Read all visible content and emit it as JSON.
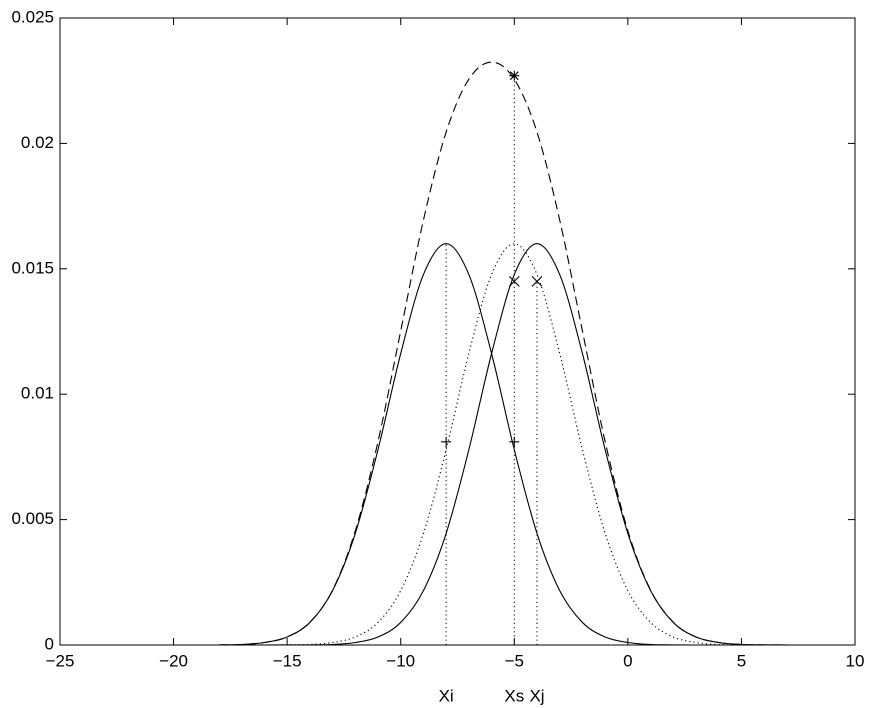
{
  "chart_data": {
    "type": "line",
    "x": [
      -18,
      -17,
      -16,
      -15,
      -14,
      -13,
      -12,
      -11,
      -10,
      -9,
      -8,
      -7,
      -6,
      -5,
      -4,
      -3,
      -2,
      -1,
      0,
      1,
      2,
      3,
      4,
      5,
      6,
      7
    ],
    "series": [
      {
        "color": "#000000",
        "style": "solid",
        "values": [
          5e-06,
          2e-05,
          0.0001,
          0.00032,
          0.0009,
          0.00217,
          0.00445,
          0.00779,
          0.01162,
          0.01477,
          0.016,
          0.01477,
          0.01162,
          0.00779,
          0.00445,
          0.00217,
          0.0009,
          0.00032,
          0.0001,
          2e-05,
          5e-06,
          0,
          0,
          0,
          0,
          0
        ]
      },
      {
        "color": "#000000",
        "style": "solid",
        "values": [
          0,
          0,
          0,
          1e-06,
          5e-06,
          2e-05,
          0.0001,
          0.00032,
          0.0009,
          0.00217,
          0.00445,
          0.00779,
          0.01162,
          0.01477,
          0.016,
          0.01477,
          0.01162,
          0.00779,
          0.00445,
          0.00217,
          0.0009,
          0.00032,
          0.0001,
          2e-05,
          5e-06,
          1e-06
        ]
      },
      {
        "color": "#000000",
        "style": "dotted",
        "values": [
          0,
          0,
          1e-06,
          5e-06,
          2e-05,
          0.0001,
          0.00032,
          0.0009,
          0.00217,
          0.00445,
          0.00779,
          0.01162,
          0.01477,
          0.016,
          0.01477,
          0.01162,
          0.00779,
          0.00445,
          0.00217,
          0.0009,
          0.00032,
          0.0001,
          2e-05,
          5e-06,
          1e-06,
          0
        ]
      },
      {
        "color": "#000000",
        "style": "dashed",
        "values": [
          5e-06,
          2e-05,
          0.0001,
          0.000321,
          0.000905,
          0.00219,
          0.00455,
          0.00811,
          0.01252,
          0.01694,
          0.02045,
          0.02256,
          0.02324,
          0.02256,
          0.02045,
          0.01694,
          0.01252,
          0.00811,
          0.00455,
          0.00219,
          0.000905,
          0.00032,
          0.0001,
          2e-05,
          5e-06,
          1e-06
        ]
      }
    ],
    "markers": [
      {
        "symbol": "plus",
        "x": [
          -8,
          -5
        ],
        "y": [
          0.0081,
          0.0081
        ]
      },
      {
        "symbol": "cross",
        "x": [
          -5,
          -4
        ],
        "y": [
          0.0145,
          0.0145
        ]
      },
      {
        "symbol": "star",
        "x": [
          -5
        ],
        "y": [
          0.0227
        ]
      }
    ],
    "vlines": {
      "x": [
        -8,
        -5,
        -4
      ],
      "top": [
        0.016,
        0.0227,
        0.0145
      ],
      "labels": [
        "Xi",
        "Xs",
        "Xj"
      ]
    },
    "xlim": [
      -25,
      10
    ],
    "xticks": [
      {
        "value": -25,
        "label": "−25"
      },
      {
        "value": -20,
        "label": "−20"
      },
      {
        "value": -15,
        "label": "−15"
      },
      {
        "value": -10,
        "label": "−10"
      },
      {
        "value": -5,
        "label": "−5"
      },
      0,
      5,
      10
    ],
    "ylim": [
      0,
      0.025
    ],
    "yticks": [
      0,
      0.005,
      0.01,
      0.015,
      0.02,
      0.025
    ]
  }
}
